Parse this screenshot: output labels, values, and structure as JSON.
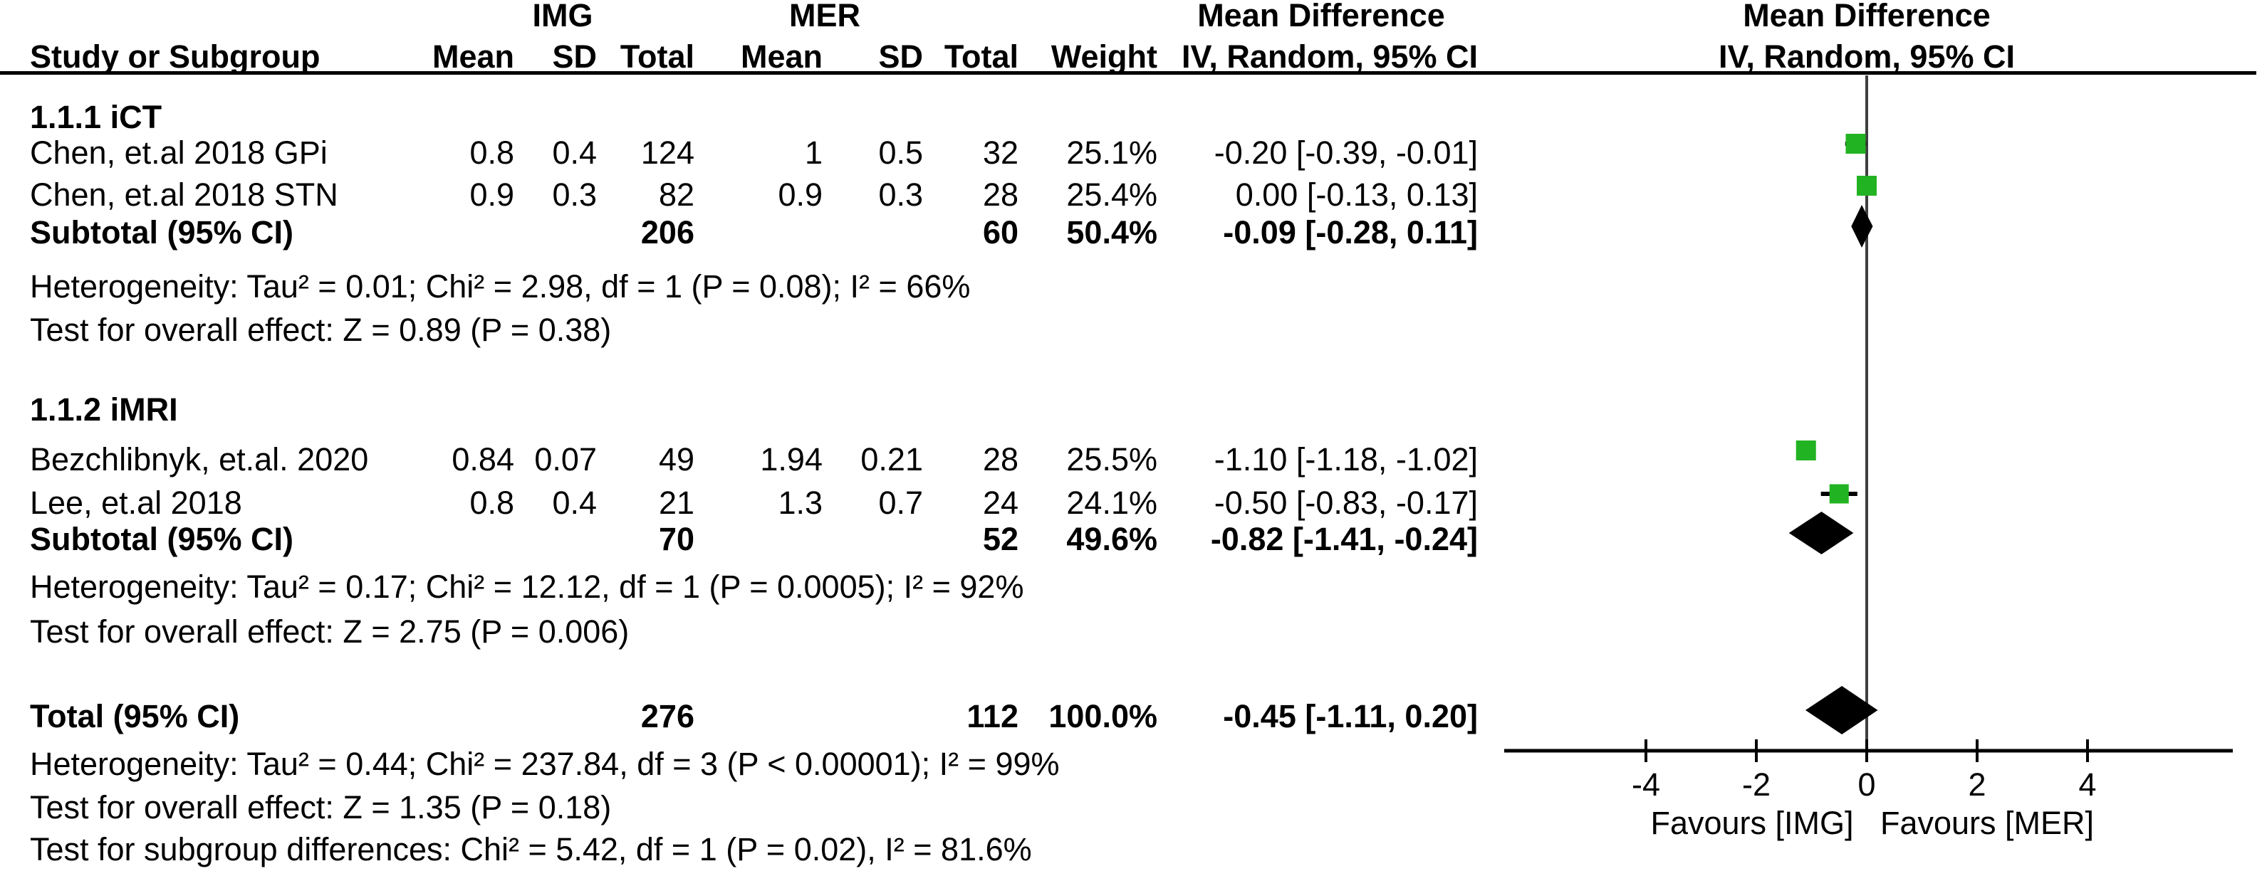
{
  "header": {
    "img_group": "IMG",
    "mer_group": "MER",
    "md_col_title": "Mean Difference",
    "md_plot_title": "Mean Difference",
    "study_col": "Study or Subgroup",
    "mean": "Mean",
    "sd": "SD",
    "total": "Total",
    "weight": "Weight",
    "method": "IV, Random, 95% CI"
  },
  "sections": [
    {
      "label": "1.1.1 iCT",
      "studies": [
        {
          "study": "Chen, et.al 2018 GPi",
          "img_mean": "0.8",
          "img_sd": "0.4",
          "img_total": "124",
          "mer_mean": "1",
          "mer_sd": "0.5",
          "mer_total": "32",
          "weight": "25.1%",
          "ci_text": "-0.20 [-0.39, -0.01]",
          "md": -0.2,
          "lo": -0.39,
          "hi": -0.01,
          "weight_pct": 25.1
        },
        {
          "study": "Chen, et.al 2018 STN",
          "img_mean": "0.9",
          "img_sd": "0.3",
          "img_total": "82",
          "mer_mean": "0.9",
          "mer_sd": "0.3",
          "mer_total": "28",
          "weight": "25.4%",
          "ci_text": "0.00 [-0.13, 0.13]",
          "md": 0.0,
          "lo": -0.13,
          "hi": 0.13,
          "weight_pct": 25.4
        }
      ],
      "subtotal": {
        "label": "Subtotal (95% CI)",
        "img_total": "206",
        "mer_total": "60",
        "weight": "50.4%",
        "ci_text": "-0.09 [-0.28, 0.11]",
        "md": -0.09,
        "lo": -0.28,
        "hi": 0.11
      },
      "heterogeneity": "Heterogeneity: Tau² = 0.01; Chi² = 2.98, df = 1 (P = 0.08); I² = 66%",
      "overall_effect": "Test for overall effect: Z = 0.89 (P = 0.38)"
    },
    {
      "label": "1.1.2 iMRI",
      "studies": [
        {
          "study": "Bezchlibnyk, et.al. 2020",
          "img_mean": "0.84",
          "img_sd": "0.07",
          "img_total": "49",
          "mer_mean": "1.94",
          "mer_sd": "0.21",
          "mer_total": "28",
          "weight": "25.5%",
          "ci_text": "-1.10 [-1.18, -1.02]",
          "md": -1.1,
          "lo": -1.18,
          "hi": -1.02,
          "weight_pct": 25.5
        },
        {
          "study": "Lee, et.al 2018",
          "img_mean": "0.8",
          "img_sd": "0.4",
          "img_total": "21",
          "mer_mean": "1.3",
          "mer_sd": "0.7",
          "mer_total": "24",
          "weight": "24.1%",
          "ci_text": "-0.50 [-0.83, -0.17]",
          "md": -0.5,
          "lo": -0.83,
          "hi": -0.17,
          "weight_pct": 24.1
        }
      ],
      "subtotal": {
        "label": "Subtotal (95% CI)",
        "img_total": "70",
        "mer_total": "52",
        "weight": "49.6%",
        "ci_text": "-0.82 [-1.41, -0.24]",
        "md": -0.82,
        "lo": -1.41,
        "hi": -0.24
      },
      "heterogeneity": "Heterogeneity: Tau² = 0.17; Chi² = 12.12, df = 1 (P = 0.0005); I² = 92%",
      "overall_effect": "Test for overall effect: Z = 2.75 (P = 0.006)"
    }
  ],
  "totals": {
    "label": "Total (95% CI)",
    "img_total": "276",
    "mer_total": "112",
    "weight": "100.0%",
    "ci_text": "-0.45 [-1.11, 0.20]",
    "md": -0.45,
    "lo": -1.11,
    "hi": 0.2,
    "heterogeneity": "Heterogeneity: Tau² = 0.44; Chi² = 237.84, df = 3 (P < 0.00001); I² = 99%",
    "overall_effect": "Test for overall effect: Z = 1.35 (P = 0.18)",
    "subgroup_differences": "Test for subgroup differences: Chi² = 5.42, df = 1 (P = 0.02), I² = 81.6%"
  },
  "axis": {
    "ticks": [
      "-4",
      "-2",
      "0",
      "2",
      "4"
    ],
    "tick_values": [
      -4,
      -2,
      0,
      2,
      4
    ],
    "favours_left": "Favours [IMG]",
    "favours_right": "Favours [MER]"
  },
  "colors": {
    "study_marker_green": "#22b322",
    "pooled_diamond_black": "#000000",
    "zero_line_gray": "#3f3f3f",
    "axis_black": "#000000"
  },
  "chart_data": {
    "type": "forest",
    "effect_measure": "Mean Difference, IV, Random, 95% CI",
    "comparison": {
      "experimental": "IMG",
      "control": "MER"
    },
    "xlabel_left": "Favours [IMG]",
    "xlabel_right": "Favours [MER]",
    "xlim": [
      -6.6,
      6.6
    ],
    "xticks": [
      -4,
      -2,
      0,
      2,
      4
    ],
    "subgroups": [
      {
        "name": "1.1.1 iCT",
        "studies": [
          {
            "study": "Chen, et.al 2018 GPi",
            "img": {
              "mean": 0.8,
              "sd": 0.4,
              "total": 124
            },
            "mer": {
              "mean": 1,
              "sd": 0.5,
              "total": 32
            },
            "weight_pct": 25.1,
            "md": -0.2,
            "ci95": [
              -0.39,
              -0.01
            ]
          },
          {
            "study": "Chen, et.al 2018 STN",
            "img": {
              "mean": 0.9,
              "sd": 0.3,
              "total": 82
            },
            "mer": {
              "mean": 0.9,
              "sd": 0.3,
              "total": 28
            },
            "weight_pct": 25.4,
            "md": 0.0,
            "ci95": [
              -0.13,
              0.13
            ]
          }
        ],
        "subtotal": {
          "img_total": 206,
          "mer_total": 60,
          "weight_pct": 50.4,
          "md": -0.09,
          "ci95": [
            -0.28,
            0.11
          ]
        },
        "tau2": 0.01,
        "chi2": 2.98,
        "df": 1,
        "p_het": 0.08,
        "i2_pct": 66,
        "z": 0.89,
        "p_overall": 0.38
      },
      {
        "name": "1.1.2 iMRI",
        "studies": [
          {
            "study": "Bezchlibnyk, et.al. 2020",
            "img": {
              "mean": 0.84,
              "sd": 0.07,
              "total": 49
            },
            "mer": {
              "mean": 1.94,
              "sd": 0.21,
              "total": 28
            },
            "weight_pct": 25.5,
            "md": -1.1,
            "ci95": [
              -1.18,
              -1.02
            ]
          },
          {
            "study": "Lee, et.al 2018",
            "img": {
              "mean": 0.8,
              "sd": 0.4,
              "total": 21
            },
            "mer": {
              "mean": 1.3,
              "sd": 0.7,
              "total": 24
            },
            "weight_pct": 24.1,
            "md": -0.5,
            "ci95": [
              -0.83,
              -0.17
            ]
          }
        ],
        "subtotal": {
          "img_total": 70,
          "mer_total": 52,
          "weight_pct": 49.6,
          "md": -0.82,
          "ci95": [
            -1.41,
            -0.24
          ]
        },
        "tau2": 0.17,
        "chi2": 12.12,
        "df": 1,
        "p_het": 0.0005,
        "i2_pct": 92,
        "z": 2.75,
        "p_overall": 0.006
      }
    ],
    "total": {
      "img_total": 276,
      "mer_total": 112,
      "weight_pct": 100.0,
      "md": -0.45,
      "ci95": [
        -1.11,
        0.2
      ],
      "tau2": 0.44,
      "chi2": 237.84,
      "df": 3,
      "p_het": "< 0.00001",
      "i2_pct": 99,
      "z": 1.35,
      "p_overall": 0.18,
      "subgroup_diff": {
        "chi2": 5.42,
        "df": 1,
        "p": 0.02,
        "i2_pct": 81.6
      }
    }
  }
}
